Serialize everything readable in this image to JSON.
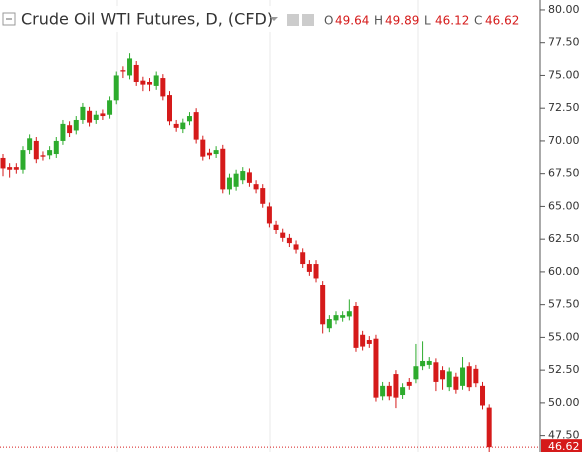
{
  "chart_data": {
    "type": "candlestick",
    "title": "Crude Oil WTI Futures, D, (CFD)",
    "ohlc_labels": [
      "O",
      "H",
      "L",
      "C"
    ],
    "up_color": "#2dab2d",
    "down_color": "#d51a1a",
    "ylim": [
      46.25,
      80.76
    ],
    "yticks": [
      {
        "value": 47.5,
        "label": "47.50"
      },
      {
        "value": 50,
        "label": "50.00"
      },
      {
        "value": 52.5,
        "label": "52.50"
      },
      {
        "value": 55,
        "label": "55.00"
      },
      {
        "value": 57.5,
        "label": "57.50"
      },
      {
        "value": 60,
        "label": "60.00"
      },
      {
        "value": 62.5,
        "label": "62.50"
      },
      {
        "value": 65,
        "label": "65.00"
      },
      {
        "value": 67.5,
        "label": "67.50"
      },
      {
        "value": 70,
        "label": "70.00"
      },
      {
        "value": 72.5,
        "label": "72.50"
      },
      {
        "value": 75,
        "label": "75.00"
      },
      {
        "value": 77.5,
        "label": "77.50"
      },
      {
        "value": 80,
        "label": "80.00"
      }
    ],
    "open": [
      68.7,
      68.0,
      68.0,
      67.8,
      69.3,
      70.0,
      68.9,
      68.9,
      69.0,
      70.0,
      71.2,
      70.8,
      71.6,
      72.3,
      71.6,
      72.1,
      72.0,
      73.1,
      75.4,
      75.0,
      75.8,
      74.6,
      74.5,
      74.2,
      74.8,
      73.5,
      71.3,
      70.9,
      71.5,
      72.2,
      70.1,
      69.1,
      69.0,
      69.4,
      66.3,
      66.5,
      67.0,
      67.6,
      66.7,
      66.4,
      65.0,
      63.6,
      63.0,
      62.6,
      62.1,
      61.5,
      60.6,
      60.6,
      59.0,
      55.7,
      56.3,
      56.5,
      56.6,
      57.4,
      55.2,
      54.8,
      54.9,
      50.5,
      51.3,
      52.2,
      50.6,
      51.6,
      51.8,
      52.8,
      52.9,
      53.1,
      52.5,
      51.2,
      52.0,
      51.3,
      52.8,
      52.6,
      51.3,
      49.64
    ],
    "high": [
      69.0,
      68.3,
      68.3,
      69.6,
      70.5,
      70.3,
      69.2,
      69.6,
      70.3,
      71.6,
      71.5,
      71.9,
      72.9,
      72.6,
      72.3,
      72.4,
      73.4,
      75.3,
      75.7,
      76.7,
      76.1,
      74.9,
      74.8,
      75.3,
      75.1,
      73.8,
      71.6,
      71.7,
      72.2,
      72.5,
      70.4,
      69.4,
      69.6,
      69.7,
      67.5,
      67.8,
      68.0,
      67.9,
      67.0,
      66.7,
      65.3,
      63.9,
      63.3,
      62.9,
      62.4,
      61.8,
      60.9,
      60.9,
      59.3,
      56.7,
      57.0,
      57.0,
      57.9,
      57.7,
      55.5,
      55.1,
      55.2,
      51.6,
      51.6,
      52.5,
      51.5,
      51.9,
      54.5,
      54.7,
      53.5,
      53.4,
      52.8,
      52.7,
      52.3,
      53.5,
      53.1,
      52.9,
      51.6,
      49.89
    ],
    "low": [
      67.3,
      67.2,
      67.5,
      67.5,
      69.0,
      68.3,
      68.5,
      68.6,
      68.7,
      69.7,
      70.3,
      70.5,
      71.3,
      71.1,
      71.3,
      71.6,
      71.7,
      72.8,
      74.8,
      74.7,
      74.2,
      73.8,
      73.8,
      73.9,
      73.1,
      71.2,
      70.7,
      70.6,
      71.2,
      69.8,
      68.5,
      68.6,
      68.7,
      66.0,
      65.9,
      66.2,
      66.7,
      66.5,
      66.0,
      64.9,
      63.4,
      62.9,
      62.3,
      61.9,
      61.4,
      60.3,
      59.7,
      59.2,
      55.3,
      55.4,
      56.0,
      56.2,
      56.3,
      53.9,
      54.0,
      54.2,
      50.1,
      50.2,
      50.2,
      49.6,
      50.3,
      51.0,
      51.5,
      52.5,
      52.6,
      50.9,
      51.0,
      50.9,
      50.7,
      51.0,
      50.9,
      51.2,
      49.5,
      46.12
    ],
    "close": [
      67.9,
      67.8,
      67.8,
      69.3,
      70.2,
      68.6,
      68.8,
      69.3,
      70.0,
      71.3,
      70.6,
      71.6,
      72.6,
      71.4,
      72.0,
      71.9,
      73.1,
      75.0,
      75.3,
      76.3,
      74.5,
      74.3,
      74.3,
      75.0,
      73.4,
      71.5,
      71.0,
      71.4,
      71.9,
      70.1,
      68.8,
      68.9,
      69.3,
      66.3,
      67.2,
      67.5,
      67.7,
      66.8,
      66.3,
      65.2,
      63.7,
      63.2,
      62.6,
      62.2,
      61.7,
      60.6,
      60.0,
      59.5,
      56.0,
      56.4,
      56.7,
      56.7,
      57.0,
      54.2,
      54.3,
      54.5,
      50.4,
      51.3,
      50.5,
      50.4,
      51.2,
      51.3,
      52.8,
      53.2,
      53.2,
      51.6,
      51.8,
      52.4,
      51.0,
      52.7,
      51.2,
      51.5,
      49.8,
      46.62
    ]
  }
}
